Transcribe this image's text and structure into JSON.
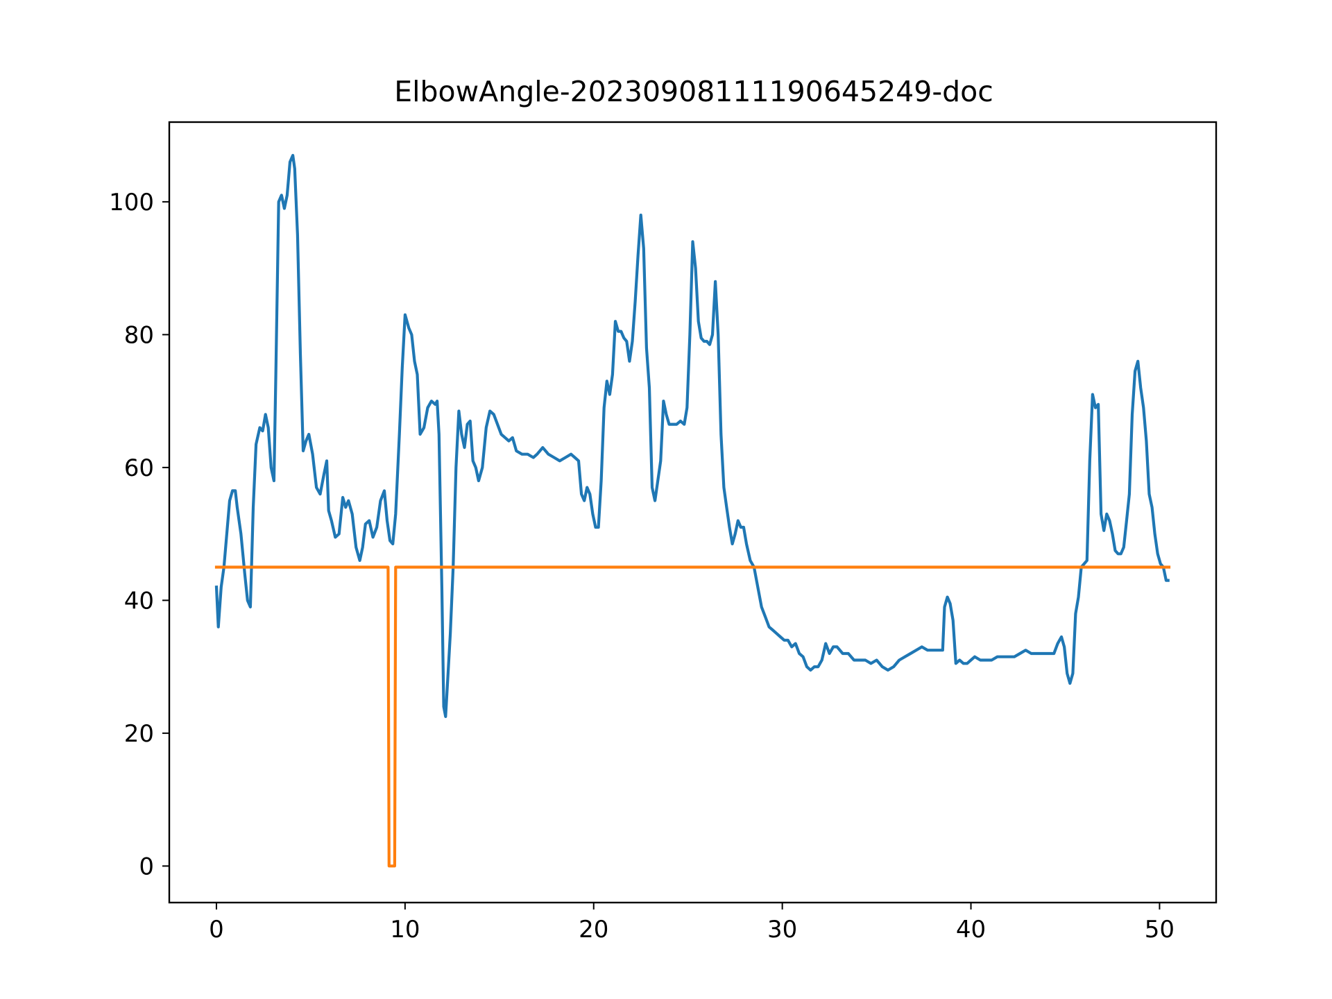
{
  "chart_data": {
    "type": "line",
    "title": "ElbowAngle-20230908111190645249-doc",
    "xlabel": "",
    "ylabel": "",
    "xlim": [
      -2.5,
      53
    ],
    "ylim": [
      -5.5,
      112
    ],
    "x_ticks": [
      0,
      10,
      20,
      30,
      40,
      50
    ],
    "y_ticks": [
      0,
      20,
      40,
      60,
      80,
      100
    ],
    "grid": false,
    "legend": "none",
    "series": [
      {
        "color": "#1f77b4",
        "points": [
          [
            0,
            42
          ],
          [
            0.1,
            36
          ],
          [
            0.25,
            42
          ],
          [
            0.4,
            45
          ],
          [
            0.55,
            50
          ],
          [
            0.7,
            55
          ],
          [
            0.85,
            56.5
          ],
          [
            1.0,
            56.5
          ],
          [
            1.1,
            54
          ],
          [
            1.3,
            50
          ],
          [
            1.5,
            44
          ],
          [
            1.65,
            40
          ],
          [
            1.8,
            39
          ],
          [
            1.95,
            54
          ],
          [
            2.1,
            63.5
          ],
          [
            2.3,
            66
          ],
          [
            2.45,
            65.5
          ],
          [
            2.6,
            68
          ],
          [
            2.75,
            66
          ],
          [
            2.9,
            60
          ],
          [
            3.05,
            58
          ],
          [
            3.15,
            74
          ],
          [
            3.3,
            100
          ],
          [
            3.45,
            101
          ],
          [
            3.6,
            99
          ],
          [
            3.75,
            101
          ],
          [
            3.9,
            106
          ],
          [
            4.05,
            107
          ],
          [
            4.15,
            105
          ],
          [
            4.3,
            95
          ],
          [
            4.45,
            77
          ],
          [
            4.6,
            62.5
          ],
          [
            4.75,
            64
          ],
          [
            4.9,
            65
          ],
          [
            5.1,
            62
          ],
          [
            5.3,
            57
          ],
          [
            5.5,
            56
          ],
          [
            5.7,
            59
          ],
          [
            5.85,
            61
          ],
          [
            5.95,
            53.5
          ],
          [
            6.1,
            52
          ],
          [
            6.3,
            49.5
          ],
          [
            6.5,
            50
          ],
          [
            6.7,
            55.5
          ],
          [
            6.85,
            54
          ],
          [
            7.0,
            55
          ],
          [
            7.2,
            53
          ],
          [
            7.4,
            48
          ],
          [
            7.6,
            46
          ],
          [
            7.75,
            48
          ],
          [
            7.9,
            51.5
          ],
          [
            8.1,
            52
          ],
          [
            8.3,
            49.5
          ],
          [
            8.5,
            51
          ],
          [
            8.7,
            55
          ],
          [
            8.9,
            56.5
          ],
          [
            9.05,
            52
          ],
          [
            9.2,
            49
          ],
          [
            9.35,
            48.5
          ],
          [
            9.5,
            53
          ],
          [
            9.7,
            65
          ],
          [
            9.85,
            75
          ],
          [
            10.0,
            83
          ],
          [
            10.2,
            81
          ],
          [
            10.35,
            80
          ],
          [
            10.5,
            76
          ],
          [
            10.65,
            74
          ],
          [
            10.8,
            65
          ],
          [
            11.0,
            66
          ],
          [
            11.2,
            69
          ],
          [
            11.4,
            70
          ],
          [
            11.6,
            69.5
          ],
          [
            11.7,
            70
          ],
          [
            11.8,
            65
          ],
          [
            11.95,
            42
          ],
          [
            12.05,
            24
          ],
          [
            12.15,
            22.5
          ],
          [
            12.3,
            30
          ],
          [
            12.4,
            35
          ],
          [
            12.55,
            45
          ],
          [
            12.7,
            60
          ],
          [
            12.85,
            68.5
          ],
          [
            13.0,
            65
          ],
          [
            13.15,
            63
          ],
          [
            13.3,
            66.5
          ],
          [
            13.45,
            67
          ],
          [
            13.6,
            61
          ],
          [
            13.75,
            60
          ],
          [
            13.9,
            58
          ],
          [
            14.1,
            60
          ],
          [
            14.3,
            66
          ],
          [
            14.5,
            68.5
          ],
          [
            14.7,
            68
          ],
          [
            14.9,
            66.5
          ],
          [
            15.1,
            65
          ],
          [
            15.3,
            64.5
          ],
          [
            15.5,
            64
          ],
          [
            15.7,
            64.5
          ],
          [
            15.9,
            62.5
          ],
          [
            16.2,
            62
          ],
          [
            16.5,
            62
          ],
          [
            16.8,
            61.5
          ],
          [
            17.0,
            62
          ],
          [
            17.3,
            63
          ],
          [
            17.6,
            62
          ],
          [
            17.9,
            61.5
          ],
          [
            18.2,
            61
          ],
          [
            18.5,
            61.5
          ],
          [
            18.8,
            62
          ],
          [
            19.0,
            61.5
          ],
          [
            19.2,
            61
          ],
          [
            19.35,
            56
          ],
          [
            19.5,
            55
          ],
          [
            19.65,
            57
          ],
          [
            19.8,
            56
          ],
          [
            19.95,
            53
          ],
          [
            20.1,
            51
          ],
          [
            20.25,
            51
          ],
          [
            20.4,
            58
          ],
          [
            20.55,
            69
          ],
          [
            20.7,
            73
          ],
          [
            20.85,
            71
          ],
          [
            21.0,
            74
          ],
          [
            21.15,
            82
          ],
          [
            21.3,
            80.5
          ],
          [
            21.45,
            80.5
          ],
          [
            21.6,
            79.5
          ],
          [
            21.75,
            79
          ],
          [
            21.9,
            76
          ],
          [
            22.05,
            79
          ],
          [
            22.2,
            85
          ],
          [
            22.35,
            92
          ],
          [
            22.5,
            98
          ],
          [
            22.65,
            93
          ],
          [
            22.8,
            78
          ],
          [
            22.95,
            72
          ],
          [
            23.1,
            57
          ],
          [
            23.25,
            55
          ],
          [
            23.4,
            58
          ],
          [
            23.55,
            61
          ],
          [
            23.7,
            70
          ],
          [
            23.85,
            68
          ],
          [
            24.0,
            66.5
          ],
          [
            24.2,
            66.5
          ],
          [
            24.4,
            66.5
          ],
          [
            24.6,
            67
          ],
          [
            24.8,
            66.5
          ],
          [
            24.95,
            69
          ],
          [
            25.1,
            80
          ],
          [
            25.25,
            94
          ],
          [
            25.4,
            90
          ],
          [
            25.55,
            82
          ],
          [
            25.7,
            79.5
          ],
          [
            25.85,
            79
          ],
          [
            26.0,
            79
          ],
          [
            26.15,
            78.5
          ],
          [
            26.3,
            80
          ],
          [
            26.45,
            88
          ],
          [
            26.6,
            80
          ],
          [
            26.75,
            65
          ],
          [
            26.9,
            57
          ],
          [
            27.05,
            54
          ],
          [
            27.2,
            51
          ],
          [
            27.35,
            48.5
          ],
          [
            27.5,
            50
          ],
          [
            27.65,
            52
          ],
          [
            27.8,
            51
          ],
          [
            27.95,
            51
          ],
          [
            28.1,
            48.5
          ],
          [
            28.3,
            46
          ],
          [
            28.5,
            45
          ],
          [
            28.7,
            42
          ],
          [
            28.9,
            39
          ],
          [
            29.1,
            37.5
          ],
          [
            29.3,
            36
          ],
          [
            29.5,
            35.5
          ],
          [
            29.7,
            35
          ],
          [
            29.9,
            34.5
          ],
          [
            30.1,
            34
          ],
          [
            30.3,
            34
          ],
          [
            30.5,
            33
          ],
          [
            30.7,
            33.5
          ],
          [
            30.9,
            32
          ],
          [
            31.1,
            31.5
          ],
          [
            31.3,
            30
          ],
          [
            31.5,
            29.5
          ],
          [
            31.7,
            30
          ],
          [
            31.9,
            30
          ],
          [
            32.1,
            31
          ],
          [
            32.3,
            33.5
          ],
          [
            32.5,
            32
          ],
          [
            32.7,
            33
          ],
          [
            32.9,
            33
          ],
          [
            33.2,
            32
          ],
          [
            33.5,
            32
          ],
          [
            33.8,
            31
          ],
          [
            34.1,
            31
          ],
          [
            34.4,
            31
          ],
          [
            34.7,
            30.5
          ],
          [
            35.0,
            31
          ],
          [
            35.3,
            30
          ],
          [
            35.6,
            29.5
          ],
          [
            35.9,
            30
          ],
          [
            36.2,
            31
          ],
          [
            36.5,
            31.5
          ],
          [
            36.8,
            32
          ],
          [
            37.1,
            32.5
          ],
          [
            37.4,
            33
          ],
          [
            37.7,
            32.5
          ],
          [
            38.0,
            32.5
          ],
          [
            38.3,
            32.5
          ],
          [
            38.5,
            32.5
          ],
          [
            38.6,
            39
          ],
          [
            38.75,
            40.5
          ],
          [
            38.9,
            39.5
          ],
          [
            39.05,
            37
          ],
          [
            39.2,
            30.5
          ],
          [
            39.4,
            31
          ],
          [
            39.6,
            30.5
          ],
          [
            39.8,
            30.5
          ],
          [
            40.0,
            31
          ],
          [
            40.2,
            31.5
          ],
          [
            40.5,
            31
          ],
          [
            40.8,
            31
          ],
          [
            41.1,
            31
          ],
          [
            41.4,
            31.5
          ],
          [
            41.7,
            31.5
          ],
          [
            42.0,
            31.5
          ],
          [
            42.3,
            31.5
          ],
          [
            42.6,
            32
          ],
          [
            42.9,
            32.5
          ],
          [
            43.2,
            32
          ],
          [
            43.5,
            32
          ],
          [
            43.8,
            32
          ],
          [
            44.1,
            32
          ],
          [
            44.4,
            32
          ],
          [
            44.6,
            33.5
          ],
          [
            44.8,
            34.5
          ],
          [
            44.95,
            33
          ],
          [
            45.1,
            29
          ],
          [
            45.25,
            27.5
          ],
          [
            45.4,
            29
          ],
          [
            45.55,
            38
          ],
          [
            45.7,
            40.5
          ],
          [
            45.85,
            45
          ],
          [
            46.0,
            45.5
          ],
          [
            46.15,
            46
          ],
          [
            46.3,
            61
          ],
          [
            46.45,
            71
          ],
          [
            46.6,
            69
          ],
          [
            46.75,
            69.5
          ],
          [
            46.9,
            53
          ],
          [
            47.05,
            50.5
          ],
          [
            47.2,
            53
          ],
          [
            47.35,
            52
          ],
          [
            47.5,
            50
          ],
          [
            47.65,
            47.5
          ],
          [
            47.8,
            47
          ],
          [
            47.95,
            47
          ],
          [
            48.1,
            48
          ],
          [
            48.25,
            52
          ],
          [
            48.4,
            56
          ],
          [
            48.55,
            68
          ],
          [
            48.7,
            74.5
          ],
          [
            48.85,
            76
          ],
          [
            49.0,
            72
          ],
          [
            49.15,
            69
          ],
          [
            49.3,
            64
          ],
          [
            49.45,
            56
          ],
          [
            49.6,
            54
          ],
          [
            49.75,
            50
          ],
          [
            49.9,
            47
          ],
          [
            50.05,
            45.5
          ],
          [
            50.2,
            45
          ],
          [
            50.35,
            43
          ],
          [
            50.45,
            43
          ]
        ]
      },
      {
        "color": "#ff7f0e",
        "points": [
          [
            0,
            45
          ],
          [
            9.1,
            45
          ],
          [
            9.15,
            0
          ],
          [
            9.45,
            0
          ],
          [
            9.5,
            45
          ],
          [
            50.5,
            45
          ]
        ]
      }
    ]
  }
}
